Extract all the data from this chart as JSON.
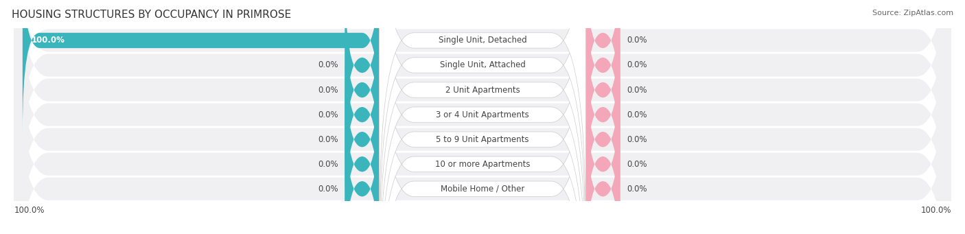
{
  "title": "HOUSING STRUCTURES BY OCCUPANCY IN PRIMROSE",
  "source": "Source: ZipAtlas.com",
  "categories": [
    "Single Unit, Detached",
    "Single Unit, Attached",
    "2 Unit Apartments",
    "3 or 4 Unit Apartments",
    "5 to 9 Unit Apartments",
    "10 or more Apartments",
    "Mobile Home / Other"
  ],
  "owner_values": [
    100.0,
    0.0,
    0.0,
    0.0,
    0.0,
    0.0,
    0.0
  ],
  "renter_values": [
    0.0,
    0.0,
    0.0,
    0.0,
    0.0,
    0.0,
    0.0
  ],
  "owner_color": "#3ab5bc",
  "renter_color": "#f4a7b9",
  "label_color": "#444444",
  "title_color": "#333333",
  "label_fontsize": 8.5,
  "title_fontsize": 11,
  "source_fontsize": 8,
  "pct_fontsize": 8.5
}
